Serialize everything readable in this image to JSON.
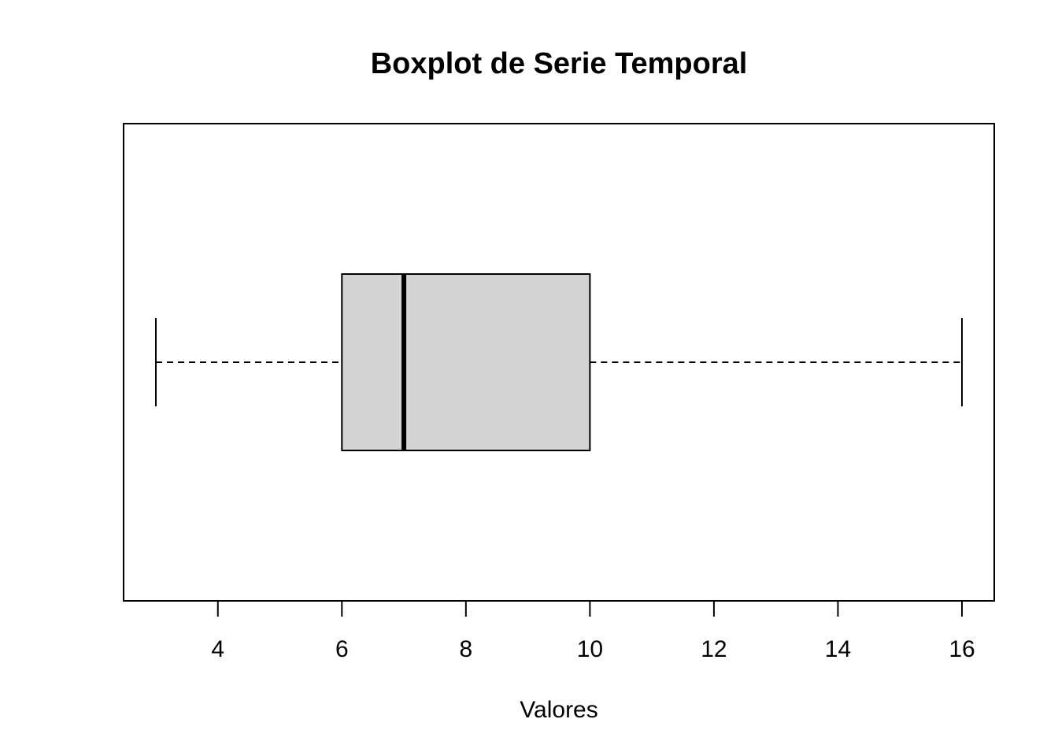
{
  "chart_data": {
    "type": "boxplot",
    "orientation": "horizontal",
    "title": "Boxplot de Serie Temporal",
    "xlabel": "Valores",
    "ylabel": "",
    "xlim": [
      2.5,
      16.5
    ],
    "x_ticks": [
      4,
      6,
      8,
      10,
      12,
      14,
      16
    ],
    "x_tick_labels": [
      "4",
      "6",
      "8",
      "10",
      "12",
      "14",
      "16"
    ],
    "grid": false,
    "legend": "none",
    "box": {
      "min": 3,
      "q1": 6,
      "median": 7,
      "q3": 10,
      "max": 16
    },
    "colors": {
      "box_fill": "#d3d3d3",
      "line": "#000000",
      "background": "#ffffff"
    }
  }
}
